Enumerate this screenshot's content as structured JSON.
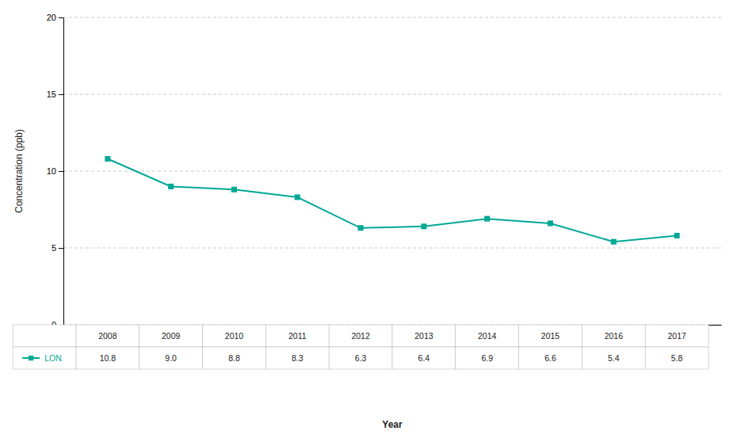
{
  "chart_data": {
    "type": "line",
    "x": [
      2008,
      2009,
      2010,
      2011,
      2012,
      2013,
      2014,
      2015,
      2016,
      2017
    ],
    "series": [
      {
        "name": "LON",
        "color": "#00A896",
        "marker": "square",
        "line_style": "solid",
        "values": [
          10.8,
          9.0,
          8.8,
          8.3,
          6.3,
          6.4,
          6.9,
          6.6,
          5.4,
          5.8
        ],
        "value_labels": [
          "10.8",
          "9.0",
          "8.8",
          "8.3",
          "6.3",
          "6.4",
          "6.9",
          "6.6",
          "5.4",
          "5.8"
        ]
      }
    ],
    "ylabel": "Concentration (ppb)",
    "xlabel": "Year",
    "xlim": [
      2007.3,
      2017.7
    ],
    "ylim": [
      0,
      20
    ],
    "yticks": [
      0,
      5,
      10,
      15,
      20
    ],
    "grid": true,
    "tick_labels": "y"
  }
}
